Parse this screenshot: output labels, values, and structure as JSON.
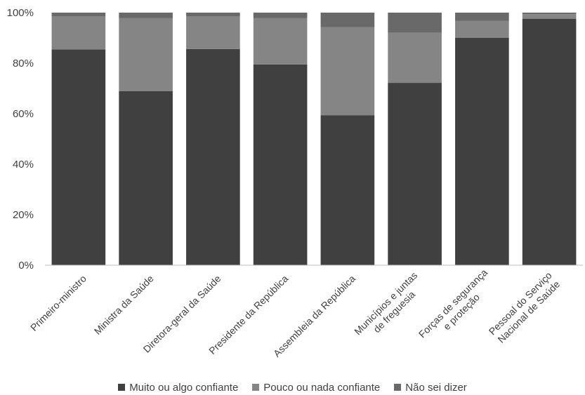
{
  "chart_data": {
    "type": "bar",
    "stacked": true,
    "categories": [
      [
        "Primeiro-ministro"
      ],
      [
        "Ministra da Saúde"
      ],
      [
        "Diretora-geral da Saúde"
      ],
      [
        "Presidente da República"
      ],
      [
        "Assembleia da República"
      ],
      [
        "Municípios e juntas",
        "de freguesia"
      ],
      [
        "Forças de segurança",
        "e proteção"
      ],
      [
        "Pessoal do Serviço",
        "Nacional de Saúde"
      ]
    ],
    "series": [
      {
        "name": "Muito ou algo confiante",
        "color": "#404040",
        "values": [
          85.4,
          68.9,
          85.6,
          79.5,
          59.4,
          72.2,
          90.0,
          97.6
        ]
      },
      {
        "name": "Pouco ou nada confiante",
        "color": "#858585",
        "values": [
          13.1,
          28.9,
          12.9,
          18.3,
          34.8,
          19.9,
          6.7,
          1.8
        ]
      },
      {
        "name": "Não sei dizer",
        "color": "#696969",
        "values": [
          1.5,
          2.2,
          1.5,
          2.2,
          5.8,
          7.9,
          3.3,
          0.6
        ]
      }
    ],
    "yticks": [
      "0%",
      "20%",
      "40%",
      "60%",
      "80%",
      "100%"
    ],
    "ylim": [
      0,
      100
    ],
    "legend_position": "bottom",
    "grid": false
  }
}
